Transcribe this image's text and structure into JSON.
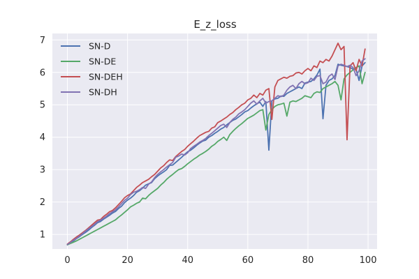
{
  "chart_data": {
    "type": "line",
    "title": "E_z_loss",
    "xlabel": "",
    "ylabel": "",
    "xlim": [
      -5,
      103
    ],
    "ylim": [
      0.55,
      7.2
    ],
    "xticks": [
      0,
      20,
      40,
      60,
      80,
      100
    ],
    "yticks": [
      1,
      2,
      3,
      4,
      5,
      6,
      7
    ],
    "grid": true,
    "legend_position": "upper-left",
    "background_color": "#eaeaf2",
    "grid_color": "#ffffff",
    "x": [
      0,
      1,
      2,
      3,
      4,
      5,
      6,
      7,
      8,
      9,
      10,
      11,
      12,
      13,
      14,
      15,
      16,
      17,
      18,
      19,
      20,
      21,
      22,
      23,
      24,
      25,
      26,
      27,
      28,
      29,
      30,
      31,
      32,
      33,
      34,
      35,
      36,
      37,
      38,
      39,
      40,
      41,
      42,
      43,
      44,
      45,
      46,
      47,
      48,
      49,
      50,
      51,
      52,
      53,
      54,
      55,
      56,
      57,
      58,
      59,
      60,
      61,
      62,
      63,
      64,
      65,
      66,
      67,
      68,
      69,
      70,
      71,
      72,
      73,
      74,
      75,
      76,
      77,
      78,
      79,
      80,
      81,
      82,
      83,
      84,
      85,
      86,
      87,
      88,
      89,
      90,
      91,
      92,
      93,
      94,
      95,
      96,
      97,
      98,
      99
    ],
    "series": [
      {
        "name": "SN-D",
        "color": "#4c72b0",
        "values": [
          0.68,
          0.74,
          0.8,
          0.87,
          0.93,
          1.0,
          1.06,
          1.13,
          1.21,
          1.28,
          1.36,
          1.4,
          1.47,
          1.53,
          1.59,
          1.66,
          1.71,
          1.8,
          1.87,
          1.98,
          2.06,
          2.12,
          2.2,
          2.3,
          2.35,
          2.43,
          2.52,
          2.56,
          2.6,
          2.72,
          2.8,
          2.87,
          2.93,
          3.0,
          3.13,
          3.14,
          3.22,
          3.3,
          3.38,
          3.47,
          3.55,
          3.6,
          3.67,
          3.75,
          3.82,
          3.88,
          3.91,
          4.0,
          4.05,
          4.12,
          4.18,
          4.25,
          4.3,
          4.38,
          4.45,
          4.52,
          4.56,
          4.63,
          4.7,
          4.78,
          4.82,
          4.9,
          4.97,
          5.03,
          5.08,
          4.95,
          5.1,
          3.6,
          5.12,
          5.18,
          5.2,
          5.27,
          5.26,
          5.35,
          5.4,
          5.45,
          5.5,
          5.55,
          5.5,
          5.67,
          5.7,
          5.72,
          5.8,
          5.92,
          6.1,
          4.57,
          5.6,
          5.75,
          5.8,
          5.9,
          6.25,
          6.22,
          6.2,
          6.18,
          6.15,
          6.1,
          6.1,
          5.75,
          6.2,
          6.3
        ]
      },
      {
        "name": "SN-DE",
        "color": "#55a868",
        "values": [
          0.68,
          0.72,
          0.76,
          0.8,
          0.85,
          0.9,
          0.95,
          1.0,
          1.05,
          1.1,
          1.15,
          1.2,
          1.25,
          1.3,
          1.35,
          1.4,
          1.45,
          1.53,
          1.6,
          1.68,
          1.76,
          1.85,
          1.9,
          1.96,
          2.0,
          2.12,
          2.1,
          2.2,
          2.28,
          2.35,
          2.42,
          2.52,
          2.6,
          2.7,
          2.78,
          2.85,
          2.93,
          3.0,
          3.03,
          3.1,
          3.18,
          3.25,
          3.32,
          3.38,
          3.45,
          3.5,
          3.56,
          3.63,
          3.72,
          3.78,
          3.87,
          3.93,
          4.0,
          3.9,
          4.08,
          4.18,
          4.27,
          4.35,
          4.42,
          4.5,
          4.58,
          4.63,
          4.68,
          4.75,
          4.82,
          4.85,
          4.22,
          4.7,
          4.85,
          4.95,
          5.0,
          5.02,
          5.05,
          4.65,
          5.08,
          5.12,
          5.1,
          5.15,
          5.2,
          5.28,
          5.25,
          5.22,
          5.35,
          5.4,
          5.38,
          5.5,
          5.55,
          5.6,
          5.65,
          5.72,
          5.6,
          5.15,
          5.8,
          5.92,
          6.0,
          6.08,
          6.15,
          6.2,
          5.65,
          6.0
        ]
      },
      {
        "name": "SN-DEH",
        "color": "#c44e52",
        "values": [
          0.7,
          0.77,
          0.85,
          0.92,
          0.98,
          1.05,
          1.12,
          1.2,
          1.28,
          1.36,
          1.44,
          1.46,
          1.55,
          1.62,
          1.7,
          1.74,
          1.82,
          1.92,
          2.02,
          2.13,
          2.2,
          2.25,
          2.35,
          2.45,
          2.52,
          2.6,
          2.65,
          2.7,
          2.78,
          2.85,
          2.95,
          3.05,
          3.12,
          3.22,
          3.3,
          3.28,
          3.4,
          3.48,
          3.56,
          3.62,
          3.72,
          3.8,
          3.88,
          3.97,
          4.05,
          4.1,
          4.15,
          4.18,
          4.28,
          4.32,
          4.45,
          4.5,
          4.56,
          4.62,
          4.7,
          4.76,
          4.85,
          4.92,
          5.0,
          5.05,
          5.15,
          5.2,
          5.3,
          5.22,
          5.35,
          5.3,
          5.45,
          5.5,
          4.55,
          5.55,
          5.75,
          5.8,
          5.85,
          5.82,
          5.88,
          5.9,
          5.98,
          6.0,
          5.95,
          6.05,
          6.12,
          6.05,
          6.2,
          6.15,
          6.35,
          6.3,
          6.4,
          6.35,
          6.5,
          6.7,
          6.9,
          6.7,
          6.8,
          3.92,
          6.2,
          6.3,
          6.05,
          6.4,
          6.2,
          6.72
        ]
      },
      {
        "name": "SN-DH",
        "color": "#8172b2",
        "values": [
          0.69,
          0.75,
          0.82,
          0.88,
          0.95,
          1.02,
          1.1,
          1.17,
          1.24,
          1.31,
          1.39,
          1.44,
          1.5,
          1.56,
          1.64,
          1.7,
          1.76,
          1.85,
          1.95,
          2.05,
          2.12,
          2.23,
          2.3,
          2.33,
          2.38,
          2.45,
          2.42,
          2.55,
          2.62,
          2.75,
          2.85,
          2.93,
          3.0,
          3.08,
          3.15,
          3.22,
          3.38,
          3.42,
          3.48,
          3.45,
          3.52,
          3.65,
          3.72,
          3.78,
          3.85,
          3.9,
          3.96,
          4.05,
          4.12,
          4.2,
          4.28,
          4.36,
          4.4,
          4.3,
          4.45,
          4.55,
          4.62,
          4.72,
          4.78,
          4.85,
          4.95,
          5.05,
          5.12,
          5.02,
          5.12,
          5.2,
          5.05,
          5.1,
          5.12,
          5.2,
          5.28,
          5.25,
          5.3,
          5.45,
          5.55,
          5.6,
          5.5,
          5.65,
          5.72,
          5.65,
          5.68,
          5.82,
          5.75,
          5.88,
          5.9,
          5.65,
          5.7,
          5.88,
          5.95,
          5.78,
          6.2,
          6.25,
          6.22,
          6.18,
          6.22,
          6.15,
          5.9,
          6.05,
          6.35,
          6.42
        ]
      }
    ]
  }
}
